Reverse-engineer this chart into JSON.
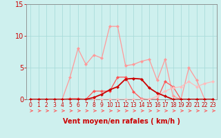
{
  "x": [
    0,
    1,
    2,
    3,
    4,
    5,
    6,
    7,
    8,
    9,
    10,
    11,
    12,
    13,
    14,
    15,
    16,
    17,
    18,
    19,
    20,
    21,
    22,
    23
  ],
  "line_light_pink": [
    0,
    0,
    0,
    0,
    0,
    3.5,
    8.0,
    5.5,
    7.0,
    6.5,
    11.5,
    11.5,
    5.3,
    5.5,
    6.0,
    6.3,
    3.0,
    6.3,
    0.5,
    0,
    5.0,
    3.0,
    0,
    0
  ],
  "line_medium_red": [
    0,
    0,
    0,
    0,
    0,
    0.1,
    0.1,
    0,
    1.3,
    1.3,
    1.3,
    3.5,
    3.5,
    1.2,
    0.1,
    0,
    0,
    2.8,
    2.0,
    0,
    0,
    0,
    0,
    0
  ],
  "line_pale_pink": [
    0,
    0,
    0,
    0,
    0,
    0,
    0,
    0,
    0,
    0,
    0,
    0,
    0,
    0,
    0,
    0,
    0.5,
    1.3,
    1.8,
    2.0,
    2.8,
    2.0,
    2.5,
    2.8
  ],
  "line_dark_red": [
    0,
    0,
    0,
    0,
    0,
    0,
    0,
    0,
    0.3,
    0.8,
    1.5,
    2.0,
    3.2,
    3.3,
    3.2,
    1.8,
    1.0,
    0.5,
    0,
    0,
    0,
    0,
    0,
    0
  ],
  "ylim": [
    0,
    15
  ],
  "xlim": [
    -0.5,
    23.5
  ],
  "yticks": [
    0,
    5,
    10,
    15
  ],
  "xticks": [
    0,
    1,
    2,
    3,
    4,
    5,
    6,
    7,
    8,
    9,
    10,
    11,
    12,
    13,
    14,
    15,
    16,
    17,
    18,
    19,
    20,
    21,
    22,
    23
  ],
  "xlabel": "Vent moyen/en rafales ( km/h )",
  "bg_color": "#cef0ee",
  "grid_color": "#aadcda",
  "line_light_pink_color": "#ff9999",
  "line_medium_red_color": "#ff5555",
  "line_pale_pink_color": "#ffbbbb",
  "line_dark_red_color": "#cc0000",
  "arrow_color": "#ff5555",
  "axis_color": "#888888",
  "tick_color": "#cc0000",
  "label_color": "#cc0000"
}
